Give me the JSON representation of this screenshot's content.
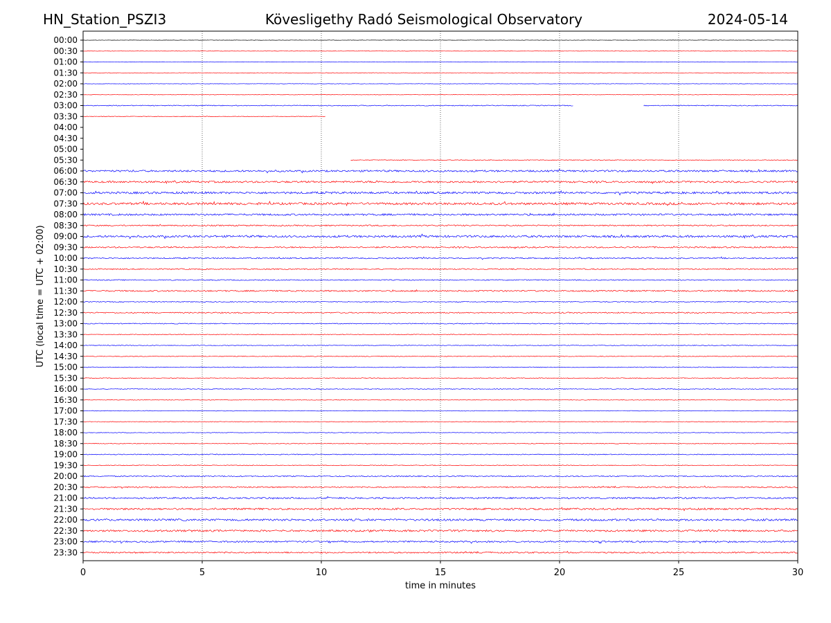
{
  "header": {
    "station": "HN_Station_PSZI3",
    "observatory": "Kövesligethy Radó Seismological Observatory",
    "date": "2024-05-14"
  },
  "chart_data": {
    "type": "line",
    "title": "Kövesligethy Radó Seismological Observatory",
    "xlabel": "time in minutes",
    "ylabel": "UTC (local time = UTC + 02:00)",
    "xlim": [
      0,
      30
    ],
    "x_ticks": [
      "0",
      "5",
      "10",
      "15",
      "20",
      "25",
      "30"
    ],
    "x_gridlines": [
      5,
      10,
      15,
      20,
      25
    ],
    "grid": "vertical dotted",
    "row_labels": [
      "00:00",
      "00:30",
      "01:00",
      "01:30",
      "02:00",
      "02:30",
      "03:00",
      "03:30",
      "04:00",
      "04:30",
      "05:00",
      "05:30",
      "06:00",
      "06:30",
      "07:00",
      "07:30",
      "08:00",
      "08:30",
      "09:00",
      "09:30",
      "10:00",
      "10:30",
      "11:00",
      "11:30",
      "12:00",
      "12:30",
      "13:00",
      "13:30",
      "14:00",
      "14:30",
      "15:00",
      "15:30",
      "16:00",
      "16:30",
      "17:00",
      "17:30",
      "18:00",
      "18:30",
      "19:00",
      "19:30",
      "20:00",
      "20:30",
      "21:00",
      "21:30",
      "22:00",
      "22:30",
      "23:00",
      "23:30"
    ],
    "colors": {
      "hour_rows": "#0000ff",
      "half_hour_rows": "#ff0000",
      "zero_row": "#000000"
    },
    "data_gaps": [
      {
        "row": "03:00",
        "from_min": 20.6,
        "to_min": 23.5
      },
      {
        "row": "03:30",
        "from_min": 10.2,
        "to_min": 30
      },
      {
        "row": "04:00",
        "from_min": 0,
        "to_min": 30
      },
      {
        "row": "04:30",
        "from_min": 0,
        "to_min": 30
      },
      {
        "row": "05:00",
        "from_min": 0,
        "to_min": 30
      },
      {
        "row": "05:30",
        "from_min": 0,
        "to_min": 11.2
      }
    ],
    "noise_level": [
      0.25,
      0.25,
      0.3,
      0.3,
      0.3,
      0.3,
      0.6,
      0.4,
      0,
      0,
      0,
      0.5,
      1.3,
      1.3,
      1.5,
      1.6,
      1.3,
      0.9,
      1.5,
      1.0,
      0.9,
      0.8,
      0.7,
      1.0,
      0.6,
      0.8,
      0.6,
      0.5,
      0.5,
      0.5,
      0.5,
      0.5,
      0.5,
      0.4,
      0.4,
      0.4,
      0.4,
      0.5,
      0.6,
      0.5,
      0.8,
      0.9,
      1.1,
      1.3,
      1.4,
      1.3,
      1.1,
      1.0
    ]
  }
}
